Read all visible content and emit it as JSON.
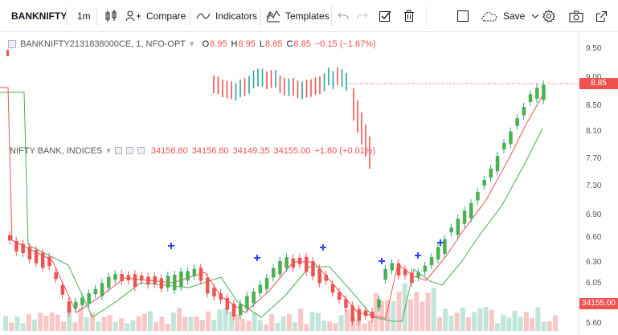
{
  "toolbar": {
    "symbol": "BANKNIFTY",
    "interval": "1m",
    "compare_label": "Compare",
    "indicators_label": "Indicators",
    "templates_label": "Templates",
    "save_label": "Save"
  },
  "legend_main": {
    "symbol": "BANKNIFTY2131838000CE, 1, NFO-OPT",
    "o_label": "O",
    "o": "8.95",
    "h_label": "H",
    "h": "8.95",
    "l_label": "L",
    "l": "8.85",
    "c_label": "C",
    "c": "8.85",
    "change": "−0.15 (−1.67%)"
  },
  "legend_overlay": {
    "symbol": "NIFTY BANK, INDICES",
    "o": "34156.80",
    "h": "34156.80",
    "l": "34149.35",
    "c": "34155.00",
    "change": "+1.80 (+0.01%)"
  },
  "price_axis": {
    "ticks": [
      "9.50",
      "9.00",
      "8.50",
      "8.10",
      "7.70",
      "7.30",
      "6.90",
      "6.60",
      "6.30",
      "6.05",
      "5.60"
    ],
    "last_price_label": "8.85",
    "overlay_price_label": "34155.00"
  },
  "colors": {
    "up": "#26a69a",
    "down": "#ef5350",
    "ma_fast": "#ef5350",
    "ma_slow": "#4caf50",
    "marker": "#3344ff"
  },
  "icons": [
    "candles-icon",
    "compare-icon",
    "indicators-icon",
    "templates-icon",
    "undo-icon",
    "redo-icon",
    "checkbox-icon",
    "trash-icon",
    "rectangle-icon",
    "cloud-icon",
    "settings-icon",
    "camera-icon",
    "expand-icon"
  ]
}
